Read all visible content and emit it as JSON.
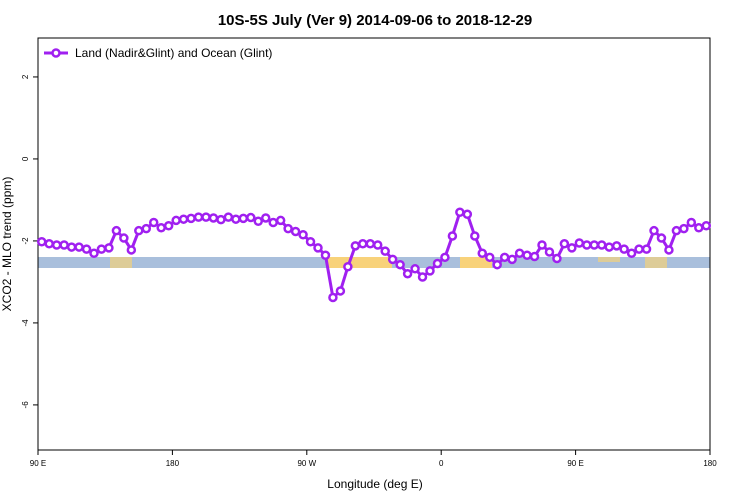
{
  "chart_data": {
    "type": "line",
    "title": "10S-5S July (Ver 9)   2014-09-06 to 2018-12-29",
    "xlabel": "Longitude (deg E)",
    "ylabel": "XCO2 - MLO trend (ppm)",
    "xlim": [
      90,
      540
    ],
    "ylim": [
      -7.1,
      2.95
    ],
    "xticks": [
      {
        "value": 90,
        "label": "90 E"
      },
      180,
      {
        "value": 270,
        "label": "90 W"
      },
      {
        "value": 360,
        "label": "0"
      },
      {
        "value": 450,
        "label": "90 E"
      },
      {
        "value": 540,
        "label": "180"
      }
    ],
    "yticks": [
      -6,
      -4,
      -2,
      0,
      2
    ],
    "legend": "top-left",
    "x": [
      92.5,
      97.5,
      102.5,
      107.5,
      112.5,
      117.5,
      122.5,
      127.5,
      132.5,
      137.5,
      142.5,
      147.5,
      152.5,
      157.5,
      162.5,
      167.5,
      172.5,
      177.5,
      182.5,
      187.5,
      192.5,
      197.5,
      202.5,
      207.5,
      212.5,
      217.5,
      222.5,
      227.5,
      232.5,
      237.5,
      242.5,
      247.5,
      252.5,
      257.5,
      262.5,
      267.5,
      272.5,
      277.5,
      282.5,
      287.5,
      292.5,
      297.5,
      302.5,
      307.5,
      312.5,
      317.5,
      322.5,
      327.5,
      332.5,
      337.5,
      342.5,
      347.5,
      352.5,
      357.5,
      362.5,
      367.5,
      372.5,
      377.5,
      382.5,
      387.5,
      392.5,
      397.5,
      402.5,
      407.5,
      412.5,
      417.5,
      422.5,
      427.5,
      432.5,
      437.5,
      442.5,
      447.5,
      452.5,
      457.5,
      462.5,
      467.5,
      472.5,
      477.5,
      482.5,
      487.5,
      492.5,
      497.5,
      502.5,
      507.5,
      512.5,
      517.5,
      522.5,
      527.5,
      532.5,
      537.5
    ],
    "series": [
      {
        "name": "Land (Nadir&Glint) and Ocean (Glint)",
        "color": "#a020f0",
        "values": [
          -2.02,
          -2.07,
          -2.1,
          -2.1,
          -2.15,
          -2.15,
          -2.2,
          -2.3,
          -2.2,
          -2.17,
          -1.75,
          -1.93,
          -2.22,
          -1.75,
          -1.7,
          -1.55,
          -1.68,
          -1.63,
          -1.5,
          -1.47,
          -1.45,
          -1.42,
          -1.42,
          -1.44,
          -1.48,
          -1.42,
          -1.47,
          -1.45,
          -1.43,
          -1.52,
          -1.44,
          -1.55,
          -1.5,
          -1.7,
          -1.77,
          -1.85,
          -2.02,
          -2.17,
          -2.35,
          -3.38,
          -3.22,
          -2.63,
          -2.12,
          -2.07,
          -2.07,
          -2.1,
          -2.25,
          -2.45,
          -2.58,
          -2.8,
          -2.68,
          -2.88,
          -2.73,
          -2.55,
          -2.4,
          -1.88,
          -1.3,
          -1.35,
          -1.88,
          -2.3,
          -2.4,
          -2.58,
          -2.4,
          -2.45,
          -2.3,
          -2.35,
          -2.38,
          -2.1,
          -2.27,
          -2.43,
          -2.07,
          -2.17,
          -2.05,
          -2.1,
          -2.1,
          -2.1,
          -2.15,
          -2.12,
          -2.2,
          -2.3,
          -2.2,
          -2.2,
          -1.75,
          -1.93,
          -2.22,
          -1.75,
          -1.7,
          -1.55,
          -1.68,
          -1.63
        ]
      }
    ]
  }
}
